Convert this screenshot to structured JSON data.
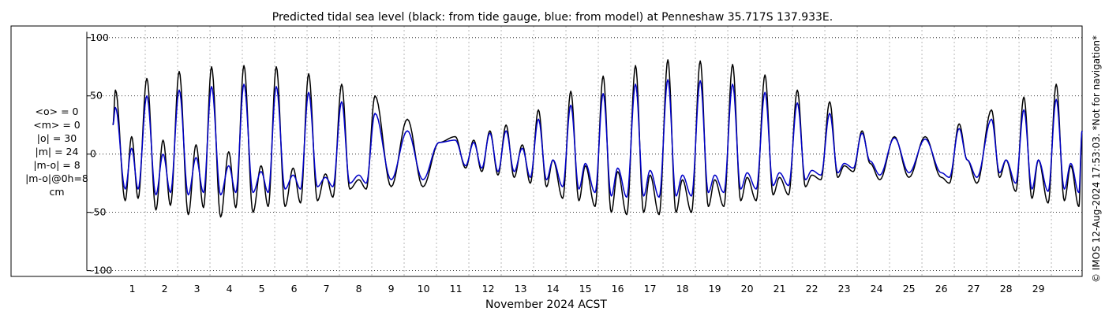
{
  "chart_data": {
    "type": "line",
    "title": "Predicted tidal sea level (black: from tide gauge, blue: from model) at Penneshaw 35.717S 137.933E.",
    "xlabel": "November 2024 ACST",
    "ylabel": "",
    "x_ticks": [
      "1",
      "2",
      "3",
      "4",
      "5",
      "6",
      "7",
      "8",
      "9",
      "10",
      "11",
      "12",
      "13",
      "14",
      "15",
      "16",
      "17",
      "18",
      "19",
      "20",
      "21",
      "22",
      "23",
      "24",
      "25",
      "26",
      "27",
      "28",
      "29"
    ],
    "y_ticks": [
      "100",
      "50",
      "0",
      "-50",
      "-100"
    ],
    "xlim": [
      0.0,
      29.95
    ],
    "ylim": [
      -105,
      110
    ],
    "grid": true,
    "stats": [
      "<o> = 0",
      "<m> = 0",
      "|o| = 30",
      "|m| = 24",
      "|m-o| = 8",
      "|m-o|@0h=8",
      "cm"
    ],
    "side_note": "© IMOS 12-Aug-2024 17:53:03. *Not for navigation*",
    "series": [
      {
        "name": "from tide gauge",
        "color": "#000000",
        "extrema": [
          [
            0.0,
            25
          ],
          [
            0.08,
            55
          ],
          [
            0.38,
            -40
          ],
          [
            0.58,
            15
          ],
          [
            0.78,
            -38
          ],
          [
            1.05,
            65
          ],
          [
            1.33,
            -48
          ],
          [
            1.55,
            12
          ],
          [
            1.78,
            -44
          ],
          [
            2.05,
            71
          ],
          [
            2.33,
            -52
          ],
          [
            2.57,
            8
          ],
          [
            2.8,
            -46
          ],
          [
            3.05,
            75
          ],
          [
            3.33,
            -54
          ],
          [
            3.58,
            2
          ],
          [
            3.8,
            -46
          ],
          [
            4.05,
            76
          ],
          [
            4.33,
            -50
          ],
          [
            4.58,
            -10
          ],
          [
            4.8,
            -45
          ],
          [
            5.05,
            75
          ],
          [
            5.32,
            -45
          ],
          [
            5.57,
            -12
          ],
          [
            5.8,
            -42
          ],
          [
            6.05,
            69
          ],
          [
            6.32,
            -40
          ],
          [
            6.57,
            -17
          ],
          [
            6.8,
            -37
          ],
          [
            7.07,
            60
          ],
          [
            7.32,
            -30
          ],
          [
            7.6,
            -22
          ],
          [
            7.83,
            -30
          ],
          [
            8.1,
            50
          ],
          [
            8.6,
            -28
          ],
          [
            9.1,
            30
          ],
          [
            9.58,
            -28
          ],
          [
            10.08,
            10
          ],
          [
            10.58,
            15
          ],
          [
            10.9,
            -12
          ],
          [
            11.15,
            12
          ],
          [
            11.4,
            -15
          ],
          [
            11.65,
            20
          ],
          [
            11.9,
            -18
          ],
          [
            12.15,
            25
          ],
          [
            12.4,
            -20
          ],
          [
            12.65,
            8
          ],
          [
            12.9,
            -25
          ],
          [
            13.15,
            38
          ],
          [
            13.4,
            -28
          ],
          [
            13.6,
            -5
          ],
          [
            13.9,
            -38
          ],
          [
            14.15,
            54
          ],
          [
            14.4,
            -40
          ],
          [
            14.6,
            -10
          ],
          [
            14.9,
            -45
          ],
          [
            15.15,
            67
          ],
          [
            15.4,
            -50
          ],
          [
            15.6,
            -15
          ],
          [
            15.88,
            -52
          ],
          [
            16.15,
            76
          ],
          [
            16.4,
            -50
          ],
          [
            16.6,
            -18
          ],
          [
            16.88,
            -52
          ],
          [
            17.15,
            81
          ],
          [
            17.4,
            -50
          ],
          [
            17.6,
            -22
          ],
          [
            17.88,
            -50
          ],
          [
            18.15,
            80
          ],
          [
            18.4,
            -45
          ],
          [
            18.6,
            -22
          ],
          [
            18.88,
            -45
          ],
          [
            19.15,
            77
          ],
          [
            19.4,
            -40
          ],
          [
            19.6,
            -20
          ],
          [
            19.88,
            -40
          ],
          [
            20.15,
            68
          ],
          [
            20.4,
            -35
          ],
          [
            20.6,
            -20
          ],
          [
            20.88,
            -35
          ],
          [
            21.15,
            55
          ],
          [
            21.4,
            -28
          ],
          [
            21.6,
            -18
          ],
          [
            21.88,
            -22
          ],
          [
            22.15,
            45
          ],
          [
            22.4,
            -20
          ],
          [
            22.6,
            -10
          ],
          [
            22.88,
            -15
          ],
          [
            23.15,
            20
          ],
          [
            23.4,
            -8
          ],
          [
            23.7,
            -22
          ],
          [
            24.15,
            15
          ],
          [
            24.6,
            -20
          ],
          [
            25.1,
            15
          ],
          [
            25.6,
            -20
          ],
          [
            25.85,
            -25
          ],
          [
            26.15,
            26
          ],
          [
            26.4,
            -5
          ],
          [
            26.7,
            -25
          ],
          [
            27.15,
            38
          ],
          [
            27.4,
            -20
          ],
          [
            27.6,
            -5
          ],
          [
            27.9,
            -32
          ],
          [
            28.15,
            49
          ],
          [
            28.4,
            -38
          ],
          [
            28.6,
            -5
          ],
          [
            28.9,
            -42
          ],
          [
            29.15,
            60
          ],
          [
            29.4,
            -40
          ],
          [
            29.6,
            -10
          ],
          [
            29.85,
            -45
          ],
          [
            29.95,
            20
          ]
        ]
      },
      {
        "name": "from model",
        "color": "#0000c8",
        "extrema": [
          [
            0.0,
            25
          ],
          [
            0.08,
            40
          ],
          [
            0.38,
            -30
          ],
          [
            0.58,
            5
          ],
          [
            0.78,
            -30
          ],
          [
            1.05,
            50
          ],
          [
            1.33,
            -35
          ],
          [
            1.55,
            0
          ],
          [
            1.78,
            -33
          ],
          [
            2.05,
            55
          ],
          [
            2.33,
            -35
          ],
          [
            2.57,
            -3
          ],
          [
            2.8,
            -33
          ],
          [
            3.05,
            58
          ],
          [
            3.33,
            -35
          ],
          [
            3.58,
            -10
          ],
          [
            3.8,
            -33
          ],
          [
            4.05,
            60
          ],
          [
            4.33,
            -33
          ],
          [
            4.58,
            -15
          ],
          [
            4.8,
            -33
          ],
          [
            5.05,
            58
          ],
          [
            5.32,
            -30
          ],
          [
            5.57,
            -18
          ],
          [
            5.8,
            -30
          ],
          [
            6.05,
            53
          ],
          [
            6.32,
            -28
          ],
          [
            6.57,
            -20
          ],
          [
            6.8,
            -28
          ],
          [
            7.07,
            45
          ],
          [
            7.32,
            -25
          ],
          [
            7.6,
            -18
          ],
          [
            7.83,
            -25
          ],
          [
            8.1,
            35
          ],
          [
            8.6,
            -22
          ],
          [
            9.1,
            20
          ],
          [
            9.58,
            -22
          ],
          [
            10.08,
            10
          ],
          [
            10.58,
            12
          ],
          [
            10.9,
            -10
          ],
          [
            11.15,
            10
          ],
          [
            11.4,
            -12
          ],
          [
            11.65,
            18
          ],
          [
            11.9,
            -15
          ],
          [
            12.15,
            20
          ],
          [
            12.4,
            -15
          ],
          [
            12.65,
            5
          ],
          [
            12.9,
            -20
          ],
          [
            13.15,
            30
          ],
          [
            13.4,
            -22
          ],
          [
            13.6,
            -5
          ],
          [
            13.9,
            -28
          ],
          [
            14.15,
            42
          ],
          [
            14.4,
            -30
          ],
          [
            14.6,
            -8
          ],
          [
            14.9,
            -33
          ],
          [
            15.15,
            52
          ],
          [
            15.4,
            -36
          ],
          [
            15.6,
            -12
          ],
          [
            15.88,
            -37
          ],
          [
            16.15,
            60
          ],
          [
            16.4,
            -36
          ],
          [
            16.6,
            -14
          ],
          [
            16.88,
            -37
          ],
          [
            17.15,
            64
          ],
          [
            17.4,
            -36
          ],
          [
            17.6,
            -18
          ],
          [
            17.88,
            -36
          ],
          [
            18.15,
            63
          ],
          [
            18.4,
            -33
          ],
          [
            18.6,
            -18
          ],
          [
            18.88,
            -33
          ],
          [
            19.15,
            60
          ],
          [
            19.4,
            -30
          ],
          [
            19.6,
            -16
          ],
          [
            19.88,
            -30
          ],
          [
            20.15,
            53
          ],
          [
            20.4,
            -27
          ],
          [
            20.6,
            -16
          ],
          [
            20.88,
            -27
          ],
          [
            21.15,
            44
          ],
          [
            21.4,
            -22
          ],
          [
            21.6,
            -14
          ],
          [
            21.88,
            -18
          ],
          [
            22.15,
            35
          ],
          [
            22.4,
            -16
          ],
          [
            22.6,
            -8
          ],
          [
            22.88,
            -12
          ],
          [
            23.15,
            18
          ],
          [
            23.4,
            -6
          ],
          [
            23.7,
            -18
          ],
          [
            24.15,
            14
          ],
          [
            24.6,
            -16
          ],
          [
            25.1,
            13
          ],
          [
            25.6,
            -16
          ],
          [
            25.85,
            -20
          ],
          [
            26.15,
            22
          ],
          [
            26.4,
            -5
          ],
          [
            26.7,
            -20
          ],
          [
            27.15,
            30
          ],
          [
            27.4,
            -16
          ],
          [
            27.6,
            -5
          ],
          [
            27.9,
            -25
          ],
          [
            28.15,
            38
          ],
          [
            28.4,
            -30
          ],
          [
            28.6,
            -5
          ],
          [
            28.9,
            -32
          ],
          [
            29.15,
            47
          ],
          [
            29.4,
            -30
          ],
          [
            29.6,
            -8
          ],
          [
            29.85,
            -33
          ],
          [
            29.95,
            20
          ]
        ]
      }
    ]
  }
}
